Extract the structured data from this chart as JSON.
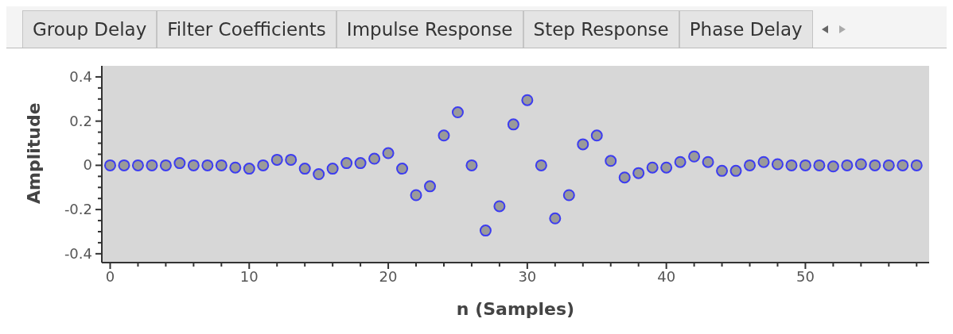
{
  "chart_data": {
    "type": "scatter",
    "xlabel": "n (Samples)",
    "ylabel": "Amplitude",
    "annotations": [
      "Group Delay",
      "Filter Coefficients",
      "Impulse Response",
      "Step Response",
      "Phase Delay"
    ],
    "x": [
      0,
      1,
      2,
      3,
      4,
      5,
      6,
      7,
      8,
      9,
      10,
      11,
      12,
      13,
      14,
      15,
      16,
      17,
      18,
      19,
      20,
      21,
      22,
      23,
      24,
      25,
      26,
      27,
      28,
      29,
      30,
      31,
      32,
      33,
      34,
      35,
      36,
      37,
      38,
      39,
      40,
      41,
      42,
      43,
      44,
      45,
      46,
      47,
      48,
      49,
      50,
      51,
      52,
      53,
      54,
      55,
      56,
      57,
      58
    ],
    "series": [
      {
        "color": "#3c3cf0",
        "values": [
          0,
          0,
          0,
          0,
          0,
          0.01,
          0,
          0,
          0,
          -0.01,
          -0.015,
          0,
          0.025,
          0.025,
          -0.015,
          -0.04,
          -0.015,
          0.01,
          0.01,
          0.03,
          0.055,
          -0.015,
          -0.135,
          -0.095,
          0.135,
          0.24,
          0,
          -0.295,
          -0.185,
          0.185,
          0.295,
          0,
          -0.24,
          -0.135,
          0.095,
          0.135,
          0.02,
          -0.055,
          -0.035,
          -0.01,
          -0.01,
          0.015,
          0.04,
          0.015,
          -0.025,
          -0.025,
          0,
          0.015,
          0.005,
          0,
          0,
          0,
          -0.005,
          0,
          0.005,
          0,
          0,
          0,
          0
        ]
      }
    ],
    "marker": "circle",
    "xlim": [
      -0.6,
      58.9
    ],
    "ylim": [
      -0.44,
      0.45
    ],
    "xticks": [
      0,
      {
        "value": 2,
        "label": null
      },
      {
        "value": 4,
        "label": null
      },
      {
        "value": 6,
        "label": null
      },
      {
        "value": 8,
        "label": null
      },
      10,
      {
        "value": 12,
        "label": null
      },
      {
        "value": 14,
        "label": null
      },
      {
        "value": 16,
        "label": null
      },
      {
        "value": 18,
        "label": null
      },
      20,
      {
        "value": 22,
        "label": null
      },
      {
        "value": 24,
        "label": null
      },
      {
        "value": 26,
        "label": null
      },
      {
        "value": 28,
        "label": null
      },
      30,
      {
        "value": 32,
        "label": null
      },
      {
        "value": 34,
        "label": null
      },
      {
        "value": 36,
        "label": null
      },
      {
        "value": 38,
        "label": null
      },
      40,
      {
        "value": 42,
        "label": null
      },
      {
        "value": 44,
        "label": null
      },
      {
        "value": 46,
        "label": null
      },
      {
        "value": 48,
        "label": null
      },
      50,
      {
        "value": 52,
        "label": null
      },
      {
        "value": 54,
        "label": null
      },
      {
        "value": 56,
        "label": null
      },
      {
        "value": 58,
        "label": null
      }
    ],
    "yticks": [
      -0.4,
      {
        "value": -0.35,
        "label": null
      },
      {
        "value": -0.3,
        "label": null
      },
      {
        "value": -0.25,
        "label": null
      },
      -0.2,
      {
        "value": -0.15,
        "label": null
      },
      {
        "value": -0.1,
        "label": null
      },
      {
        "value": -0.05,
        "label": null
      },
      0,
      {
        "value": 0.05,
        "label": null
      },
      {
        "value": 0.1,
        "label": null
      },
      {
        "value": 0.15,
        "label": null
      },
      0.2,
      {
        "value": 0.25,
        "label": null
      },
      {
        "value": 0.3,
        "label": null
      },
      {
        "value": 0.35,
        "label": null
      },
      0.4
    ],
    "grid": false,
    "legend": false
  }
}
